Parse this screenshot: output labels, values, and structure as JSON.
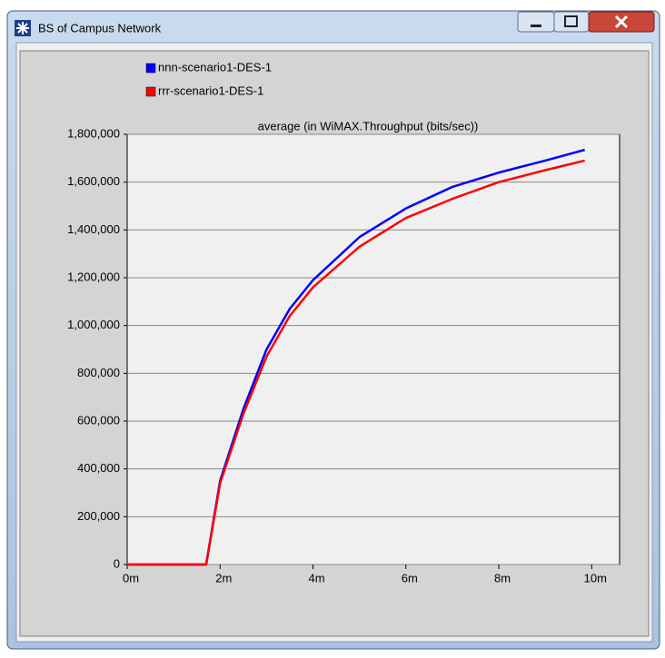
{
  "window": {
    "title": "BS of Campus Network"
  },
  "chart_data": {
    "type": "line",
    "title": "average (in WiMAX.Throughput (bits/sec))",
    "x": [
      0,
      1.7,
      2,
      2.5,
      3,
      3.5,
      4,
      5,
      6,
      7,
      8,
      9,
      9.85
    ],
    "series": [
      {
        "name": "nnn-scenario1-DES-1",
        "color": "#0000ff",
        "values": [
          0,
          0,
          350000,
          650000,
          900000,
          1070000,
          1190000,
          1370000,
          1490000,
          1580000,
          1640000,
          1690000,
          1735000
        ]
      },
      {
        "name": "rrr-scenario1-DES-1",
        "color": "#ff0000",
        "values": [
          0,
          0,
          340000,
          630000,
          870000,
          1040000,
          1160000,
          1330000,
          1450000,
          1530000,
          1600000,
          1650000,
          1690000
        ]
      }
    ],
    "xlim": [
      0,
      10.6
    ],
    "xticks": [
      {
        "value": 0,
        "label": "0m"
      },
      {
        "value": 2,
        "label": "2m"
      },
      {
        "value": 4,
        "label": "4m"
      },
      {
        "value": 6,
        "label": "6m"
      },
      {
        "value": 8,
        "label": "8m"
      },
      {
        "value": 10,
        "label": "10m"
      }
    ],
    "ylim": [
      0,
      1800000
    ],
    "yticks": [
      0,
      {
        "value": 200000,
        "label": "200,000"
      },
      {
        "value": 400000,
        "label": "400,000"
      },
      {
        "value": 600000,
        "label": "600,000"
      },
      {
        "value": 800000,
        "label": "800,000"
      },
      {
        "value": 1000000,
        "label": "1,000,000"
      },
      {
        "value": 1200000,
        "label": "1,200,000"
      },
      {
        "value": 1400000,
        "label": "1,400,000"
      },
      {
        "value": 1600000,
        "label": "1,600,000"
      },
      {
        "value": 1800000,
        "label": "1,800,000"
      }
    ],
    "grid": true
  }
}
